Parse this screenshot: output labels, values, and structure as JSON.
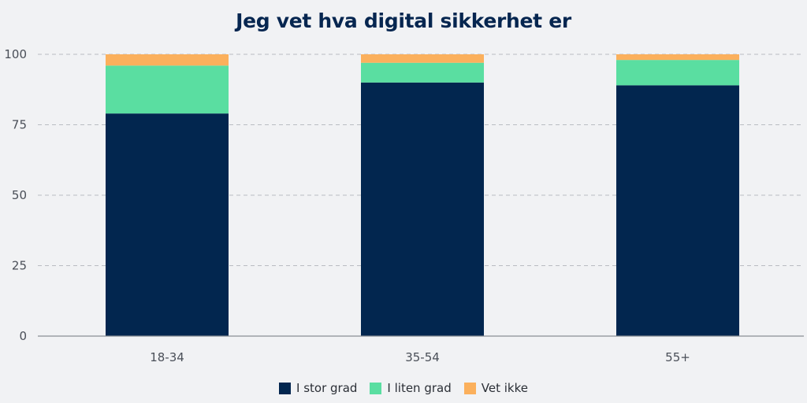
{
  "chart_data": {
    "type": "bar",
    "stacked": true,
    "title": "Jeg vet hva digital sikkerhet er",
    "xlabel": "",
    "ylabel": "",
    "categories": [
      "18-34",
      "35-54",
      "55+"
    ],
    "ylim": [
      0,
      100
    ],
    "yticks": [
      0,
      25,
      50,
      75,
      100
    ],
    "grid": true,
    "legend_position": "bottom",
    "series": [
      {
        "name": "I stor grad",
        "color": "#02264f",
        "values": [
          79,
          90,
          89
        ]
      },
      {
        "name": "I liten grad",
        "color": "#5adea1",
        "values": [
          17,
          7,
          9
        ]
      },
      {
        "name": "Vet ikke",
        "color": "#fbb05c",
        "values": [
          4,
          3,
          2
        ]
      }
    ]
  }
}
